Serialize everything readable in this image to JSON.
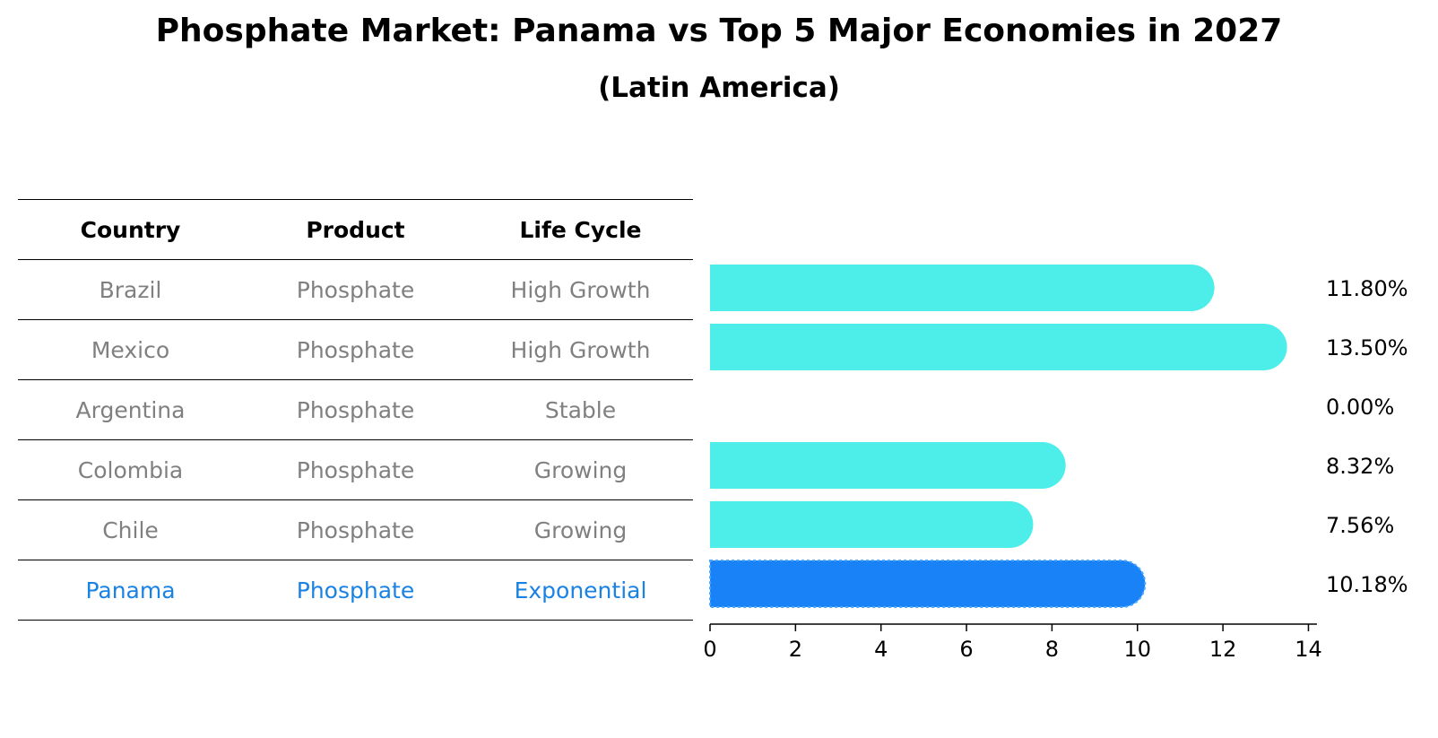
{
  "chart_data": {
    "type": "bar",
    "title": "Phosphate Market: Panama vs Top 5 Major Economies in 2027",
    "subtitle": "(Latin America)",
    "table": {
      "headers": [
        "Country",
        "Product",
        "Life Cycle"
      ],
      "rows": [
        [
          "Brazil",
          "Phosphate",
          "High Growth"
        ],
        [
          "Mexico",
          "Phosphate",
          "High Growth"
        ],
        [
          "Argentina",
          "Phosphate",
          "Stable"
        ],
        [
          "Colombia",
          "Phosphate",
          "Growing"
        ],
        [
          "Chile",
          "Phosphate",
          "Growing"
        ],
        [
          "Panama",
          "Phosphate",
          "Exponential"
        ]
      ],
      "highlight_row": 5
    },
    "categories": [
      "Brazil",
      "Mexico",
      "Argentina",
      "Colombia",
      "Chile",
      "Panama"
    ],
    "values": [
      11.8,
      13.5,
      0.0,
      8.32,
      7.56,
      10.18
    ],
    "value_labels": [
      "11.80%",
      "13.50%",
      "0.00%",
      "8.32%",
      "7.56%",
      "10.18%"
    ],
    "orientation": "horizontal",
    "xlim": [
      0,
      14.2
    ],
    "xticks": [
      0,
      2,
      4,
      6,
      8,
      10,
      12,
      14
    ],
    "xlabel": "",
    "ylabel": "",
    "grid": false,
    "colors": {
      "default": "#4deeea",
      "highlight": "#1a82f7",
      "highlight_text": "#1a82e2",
      "muted_text": "#808080"
    }
  }
}
